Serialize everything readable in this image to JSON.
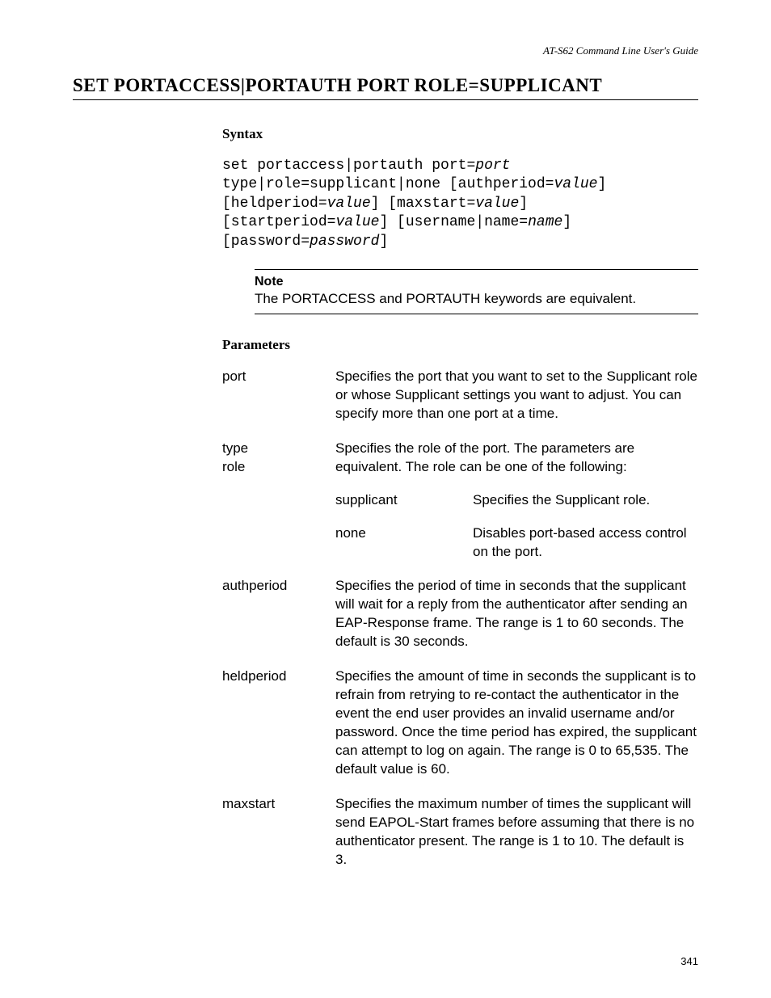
{
  "header": {
    "guide": "AT-S62 Command Line User's Guide"
  },
  "title": "SET PORTACCESS|PORTAUTH PORT ROLE=SUPPLICANT",
  "syntax": {
    "heading": "Syntax",
    "l1a": "set portaccess|portauth port=",
    "l1b": "port",
    "l2a": "type|role=supplicant|none [authperiod=",
    "l2b": "value",
    "l2c": "]",
    "l3a": "[heldperiod=",
    "l3b": "value",
    "l3c": "] [maxstart=",
    "l3d": "value",
    "l3e": "]",
    "l4a": "[startperiod=",
    "l4b": "value",
    "l4c": "] [username|name=",
    "l4d": "name",
    "l4e": "]",
    "l5a": "[password=",
    "l5b": "password",
    "l5c": "]"
  },
  "note": {
    "title": "Note",
    "body": "The PORTACCESS and PORTAUTH keywords are equivalent."
  },
  "parameters": {
    "heading": "Parameters",
    "rows": [
      {
        "name": "port",
        "desc": "Specifies the port that you want to set to the Supplicant role or whose Supplicant settings you want to adjust. You can specify more than one port at a time."
      },
      {
        "name": "type\nrole",
        "desc": "Specifies the role of the port. The parameters are equivalent. The role can be one of the following:",
        "subs": [
          {
            "name": "supplicant",
            "desc": "Specifies the Supplicant role."
          },
          {
            "name": "none",
            "desc": "Disables port-based access control on the port."
          }
        ]
      },
      {
        "name": "authperiod",
        "desc": "Specifies the period of time in seconds that the supplicant will wait for a reply from the authenticator after sending an EAP-Response frame. The range is 1 to 60 seconds. The default is 30 seconds."
      },
      {
        "name": "heldperiod",
        "desc": "Specifies the amount of time in seconds the supplicant is to refrain from retrying to re-contact the authenticator in the event the end user provides an invalid username and/or password. Once the time period has expired, the supplicant can attempt to log on again. The range is 0 to 65,535. The default value is 60."
      },
      {
        "name": "maxstart",
        "desc": "Specifies the maximum number of times the supplicant will send EAPOL-Start frames before assuming that there is no authenticator present. The range is 1 to 10. The default is 3."
      }
    ]
  },
  "page_number": "341"
}
